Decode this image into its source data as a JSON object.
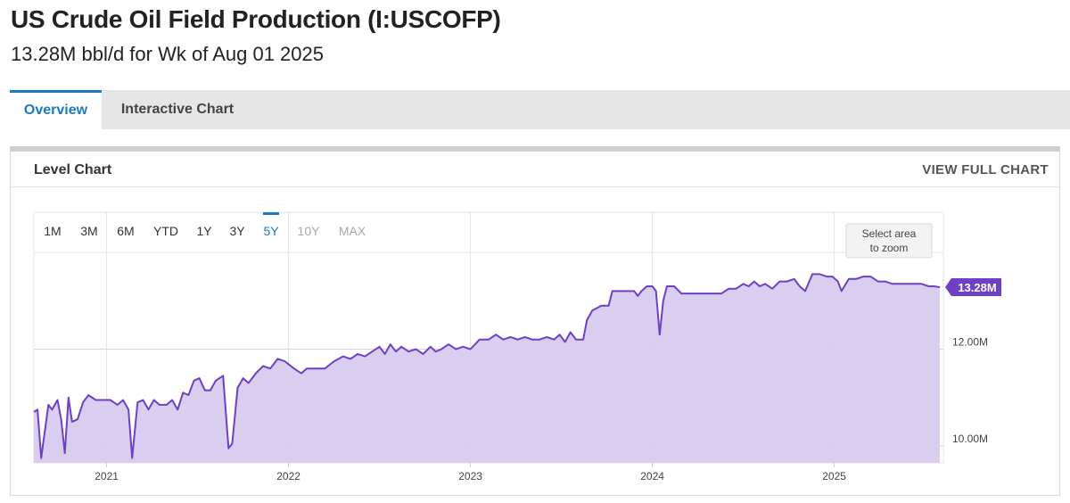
{
  "header": {
    "title": "US Crude Oil Field Production (I:USCOFP)",
    "subtitle": "13.28M bbl/d for Wk of Aug 01 2025"
  },
  "tabs": [
    {
      "label": "Overview",
      "active": true
    },
    {
      "label": "Interactive Chart",
      "active": false
    }
  ],
  "panel": {
    "title": "Level Chart",
    "view_full_label": "VIEW FULL CHART"
  },
  "range_buttons": [
    {
      "label": "1M",
      "state": "normal"
    },
    {
      "label": "3M",
      "state": "normal"
    },
    {
      "label": "6M",
      "state": "normal"
    },
    {
      "label": "YTD",
      "state": "normal"
    },
    {
      "label": "1Y",
      "state": "normal"
    },
    {
      "label": "3Y",
      "state": "normal"
    },
    {
      "label": "5Y",
      "state": "active"
    },
    {
      "label": "10Y",
      "state": "disabled"
    },
    {
      "label": "MAX",
      "state": "disabled"
    }
  ],
  "zoom_hint": [
    "Select area",
    "to zoom"
  ],
  "colors": {
    "line": "#6f3fc4",
    "fill": "#d7cbef",
    "accent": "#1a7ac2"
  },
  "chart_data": {
    "type": "area",
    "title": "",
    "xlabel": "",
    "ylabel": "",
    "x_ticks": [
      "2021",
      "2022",
      "2023",
      "2024",
      "2025"
    ],
    "y_ticks": [
      {
        "value": 10.0,
        "label": "10.00M"
      },
      {
        "value": 12.0,
        "label": "12.00M"
      }
    ],
    "ylim": [
      9.65,
      14.0
    ],
    "xlim": [
      2020.6,
      2025.6
    ],
    "last_value_label": "13.28M",
    "grid": true,
    "series": [
      {
        "values": [
          [
            2020.6,
            10.7
          ],
          [
            2020.62,
            10.75
          ],
          [
            2020.64,
            9.75
          ],
          [
            2020.68,
            10.85
          ],
          [
            2020.7,
            10.75
          ],
          [
            2020.73,
            10.95
          ],
          [
            2020.75,
            10.55
          ],
          [
            2020.77,
            9.85
          ],
          [
            2020.79,
            11.0
          ],
          [
            2020.81,
            10.5
          ],
          [
            2020.84,
            10.55
          ],
          [
            2020.87,
            10.9
          ],
          [
            2020.9,
            11.05
          ],
          [
            2020.94,
            10.95
          ],
          [
            2020.98,
            10.95
          ],
          [
            2021.02,
            10.95
          ],
          [
            2021.06,
            10.85
          ],
          [
            2021.09,
            10.95
          ],
          [
            2021.12,
            10.75
          ],
          [
            2021.14,
            9.75
          ],
          [
            2021.17,
            10.9
          ],
          [
            2021.2,
            10.95
          ],
          [
            2021.23,
            10.75
          ],
          [
            2021.26,
            10.95
          ],
          [
            2021.29,
            10.85
          ],
          [
            2021.33,
            10.85
          ],
          [
            2021.36,
            10.95
          ],
          [
            2021.39,
            10.75
          ],
          [
            2021.42,
            11.1
          ],
          [
            2021.45,
            11.05
          ],
          [
            2021.48,
            11.35
          ],
          [
            2021.51,
            11.4
          ],
          [
            2021.54,
            11.15
          ],
          [
            2021.57,
            11.15
          ],
          [
            2021.6,
            11.35
          ],
          [
            2021.64,
            11.45
          ],
          [
            2021.67,
            9.95
          ],
          [
            2021.69,
            10.05
          ],
          [
            2021.72,
            11.2
          ],
          [
            2021.75,
            11.4
          ],
          [
            2021.78,
            11.3
          ],
          [
            2021.82,
            11.5
          ],
          [
            2021.86,
            11.65
          ],
          [
            2021.9,
            11.6
          ],
          [
            2021.94,
            11.8
          ],
          [
            2021.98,
            11.75
          ],
          [
            2022.03,
            11.6
          ],
          [
            2022.07,
            11.5
          ],
          [
            2022.1,
            11.6
          ],
          [
            2022.14,
            11.6
          ],
          [
            2022.2,
            11.6
          ],
          [
            2022.25,
            11.75
          ],
          [
            2022.3,
            11.85
          ],
          [
            2022.34,
            11.8
          ],
          [
            2022.38,
            11.9
          ],
          [
            2022.42,
            11.85
          ],
          [
            2022.46,
            11.95
          ],
          [
            2022.5,
            12.05
          ],
          [
            2022.53,
            11.9
          ],
          [
            2022.56,
            12.1
          ],
          [
            2022.59,
            11.95
          ],
          [
            2022.62,
            12.05
          ],
          [
            2022.66,
            11.95
          ],
          [
            2022.7,
            12.0
          ],
          [
            2022.74,
            11.9
          ],
          [
            2022.78,
            12.05
          ],
          [
            2022.81,
            11.95
          ],
          [
            2022.84,
            12.0
          ],
          [
            2022.88,
            12.1
          ],
          [
            2022.92,
            12.0
          ],
          [
            2022.96,
            12.05
          ],
          [
            2023.0,
            12.0
          ],
          [
            2023.05,
            12.2
          ],
          [
            2023.1,
            12.2
          ],
          [
            2023.14,
            12.3
          ],
          [
            2023.18,
            12.2
          ],
          [
            2023.22,
            12.25
          ],
          [
            2023.26,
            12.2
          ],
          [
            2023.3,
            12.25
          ],
          [
            2023.34,
            12.2
          ],
          [
            2023.38,
            12.2
          ],
          [
            2023.42,
            12.25
          ],
          [
            2023.46,
            12.2
          ],
          [
            2023.49,
            12.3
          ],
          [
            2023.52,
            12.15
          ],
          [
            2023.55,
            12.35
          ],
          [
            2023.58,
            12.2
          ],
          [
            2023.62,
            12.2
          ],
          [
            2023.64,
            12.6
          ],
          [
            2023.67,
            12.8
          ],
          [
            2023.72,
            12.9
          ],
          [
            2023.76,
            12.9
          ],
          [
            2023.78,
            13.2
          ],
          [
            2023.82,
            13.2
          ],
          [
            2023.86,
            13.2
          ],
          [
            2023.9,
            13.2
          ],
          [
            2023.92,
            13.1
          ],
          [
            2023.94,
            13.2
          ],
          [
            2023.97,
            13.3
          ],
          [
            2024.0,
            13.3
          ],
          [
            2024.02,
            13.2
          ],
          [
            2024.04,
            12.3
          ],
          [
            2024.06,
            13.0
          ],
          [
            2024.08,
            13.3
          ],
          [
            2024.12,
            13.3
          ],
          [
            2024.16,
            13.15
          ],
          [
            2024.21,
            13.15
          ],
          [
            2024.26,
            13.15
          ],
          [
            2024.3,
            13.15
          ],
          [
            2024.34,
            13.15
          ],
          [
            2024.38,
            13.15
          ],
          [
            2024.42,
            13.25
          ],
          [
            2024.46,
            13.25
          ],
          [
            2024.5,
            13.35
          ],
          [
            2024.53,
            13.3
          ],
          [
            2024.56,
            13.4
          ],
          [
            2024.59,
            13.3
          ],
          [
            2024.62,
            13.35
          ],
          [
            2024.66,
            13.25
          ],
          [
            2024.7,
            13.4
          ],
          [
            2024.74,
            13.4
          ],
          [
            2024.78,
            13.45
          ],
          [
            2024.81,
            13.3
          ],
          [
            2024.84,
            13.2
          ],
          [
            2024.88,
            13.55
          ],
          [
            2024.92,
            13.55
          ],
          [
            2024.96,
            13.5
          ],
          [
            2024.99,
            13.5
          ],
          [
            2025.02,
            13.4
          ],
          [
            2025.04,
            13.2
          ],
          [
            2025.08,
            13.45
          ],
          [
            2025.12,
            13.45
          ],
          [
            2025.16,
            13.5
          ],
          [
            2025.2,
            13.5
          ],
          [
            2025.24,
            13.4
          ],
          [
            2025.28,
            13.4
          ],
          [
            2025.32,
            13.35
          ],
          [
            2025.36,
            13.35
          ],
          [
            2025.4,
            13.35
          ],
          [
            2025.44,
            13.35
          ],
          [
            2025.48,
            13.35
          ],
          [
            2025.52,
            13.3
          ],
          [
            2025.55,
            13.3
          ],
          [
            2025.58,
            13.28
          ]
        ]
      }
    ]
  }
}
